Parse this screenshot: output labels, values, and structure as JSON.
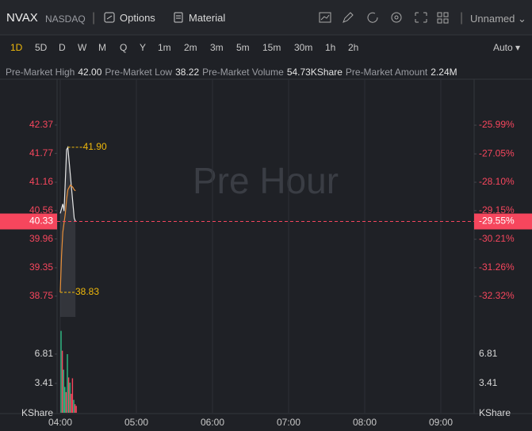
{
  "header": {
    "symbol": "NVAX",
    "exchange": "NASDAQ",
    "options": "Options",
    "material": "Material",
    "layout": "Unnamed"
  },
  "timeframes": {
    "items": [
      "1D",
      "5D",
      "D",
      "W",
      "M",
      "Q",
      "Y",
      "1m",
      "2m",
      "3m",
      "5m",
      "15m",
      "30m",
      "1h",
      "2h"
    ],
    "selected": 0,
    "auto": "Auto"
  },
  "stats": [
    {
      "label": "Pre-Market High",
      "value": "42.00"
    },
    {
      "label": "Pre-Market Low",
      "value": "38.22"
    },
    {
      "label": "Pre-Market Volume",
      "value": "54.73KShare"
    },
    {
      "label": "Pre-Market Amount",
      "value": "2.24M"
    }
  ],
  "chart_data": {
    "type": "line",
    "watermark": "Pre Hour",
    "x": [
      "04:00",
      "04:01",
      "04:02",
      "04:03",
      "04:04",
      "04:05",
      "04:06",
      "04:07",
      "04:08",
      "04:09",
      "04:10",
      "04:11",
      "04:12"
    ],
    "series": [
      {
        "color": "#e6e6e6",
        "values": [
          40.5,
          40.6,
          40.7,
          40.55,
          41.2,
          41.85,
          41.9,
          41.6,
          41.3,
          41.0,
          40.7,
          40.4,
          40.33
        ]
      },
      {
        "color": "#e8903a",
        "values": [
          38.83,
          39.6,
          40.1,
          40.3,
          40.5,
          40.8,
          41.0,
          41.05,
          41.1,
          41.08,
          41.05,
          41.0,
          40.98
        ]
      }
    ],
    "xlim": [
      "04:00",
      "09:30"
    ],
    "xticks": [
      "04:00",
      "05:00",
      "06:00",
      "07:00",
      "08:00",
      "09:00"
    ],
    "ylim": [
      38.31,
      43.34
    ],
    "yticks": [
      38.75,
      39.35,
      39.96,
      40.56,
      41.16,
      41.77,
      42.37
    ],
    "y2lim": [
      -33.08,
      -24.29
    ],
    "y2ticks": [
      {
        "value": -32.32,
        "label": "-32.32%"
      },
      {
        "value": -31.26,
        "label": "-31.26%"
      },
      {
        "value": -30.21,
        "label": "-30.21%"
      },
      {
        "value": -29.15,
        "label": "-29.15%"
      },
      {
        "value": -28.1,
        "label": "-28.10%"
      },
      {
        "value": -27.05,
        "label": "-27.05%"
      },
      {
        "value": -25.99,
        "label": "-25.99%"
      }
    ],
    "current": {
      "value": 40.33,
      "y2": {
        "value": -29.55,
        "label": "-29.55%"
      }
    },
    "annotations": [
      {
        "x": "04:06",
        "value": 41.9,
        "label": "41.90"
      },
      {
        "x": "04:00",
        "value": 38.83,
        "label": "38.83"
      }
    ],
    "volume": {
      "unit": "KShare",
      "values": [
        9.5,
        7.2,
        5.0,
        3.0,
        2.4,
        6.8,
        4.1,
        3.5,
        2.2,
        4.0,
        1.5,
        1.0,
        0.8
      ],
      "colors": [
        "#2ebd85",
        "#f6465d",
        "#2ebd85",
        "#2ebd85",
        "#f6465d",
        "#2ebd85",
        "#f6465d",
        "#2ebd85",
        "#f6465d",
        "#f6465d",
        "#2ebd85",
        "#f6465d",
        "#f6465d"
      ],
      "ylim": [
        0,
        11.12
      ],
      "yticks": [
        3.41,
        6.81
      ]
    }
  }
}
